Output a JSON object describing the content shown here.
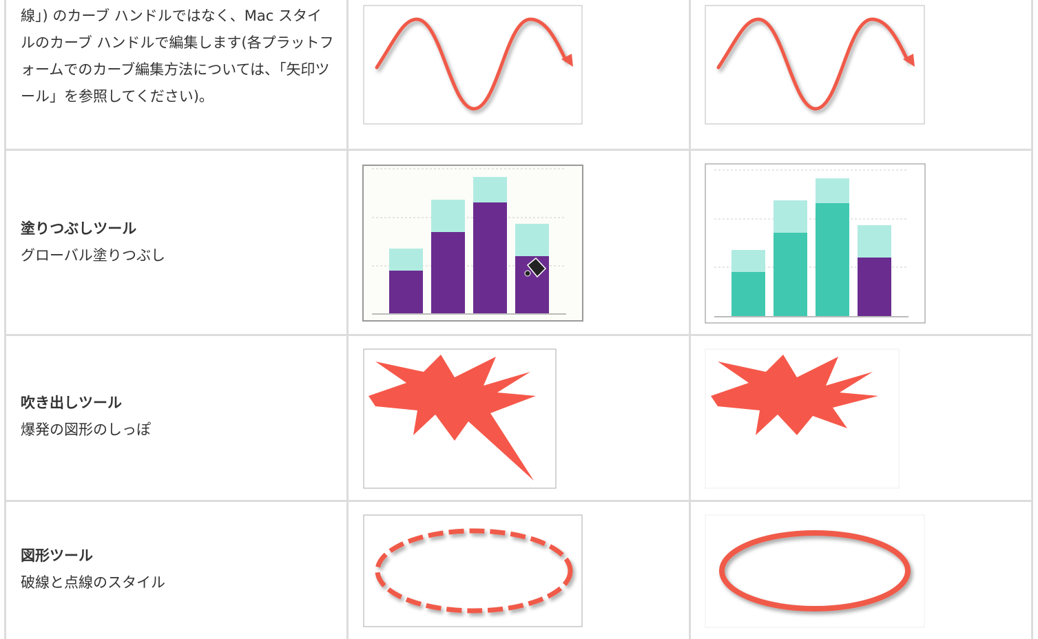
{
  "table": {
    "rows": [
      {
        "text": "線」) のカーブ ハンドルではなく、Mac スタイルのカーブ ハンドルで編集します(各プラットフォームでのカーブ編集方法については、「矢印ツール」を参照してください)。"
      },
      {
        "title": "塗りつぶしツール",
        "desc": "グローバル塗りつぶし"
      },
      {
        "title": "吹き出しツール",
        "desc": "爆発の図形のしっぽ"
      },
      {
        "title": "図形ツール",
        "desc": "破線と点線のスタイル"
      }
    ]
  }
}
